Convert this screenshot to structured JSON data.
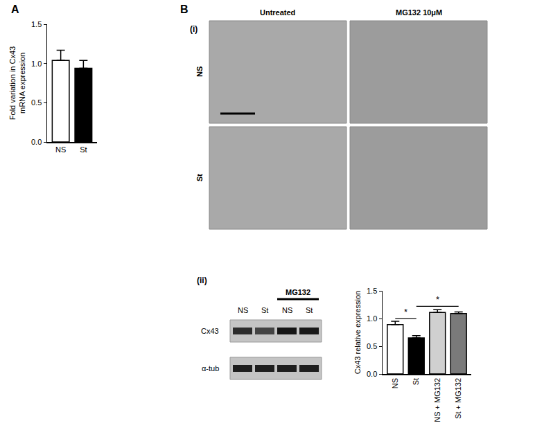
{
  "panels": [
    "A",
    "B",
    "(i)",
    "(ii)"
  ],
  "micrographs": {
    "columns": [
      "Untreated",
      "MG132 10μM"
    ],
    "rows": [
      "NS",
      "St"
    ]
  },
  "blot": {
    "treatment": "MG132",
    "lanes": [
      "NS",
      "St",
      "NS",
      "St"
    ],
    "proteins": [
      "Cx43",
      "α-tub"
    ]
  },
  "chart_data": [
    {
      "type": "bar",
      "categories": [
        "NS",
        "St"
      ],
      "values": [
        1.04,
        0.94
      ],
      "errors": [
        0.13,
        0.1
      ],
      "colors": [
        "#ffffff",
        "#000000"
      ],
      "y_label": "Fold variation in Cx43\nmRNA expression",
      "ylim": [
        0,
        1.5
      ],
      "yticks": [
        {
          "value": 0,
          "label": "0.0"
        },
        {
          "value": 0.5,
          "label": "0.5"
        },
        {
          "value": 1,
          "label": "1.0"
        },
        {
          "value": 1.5,
          "label": "1.5"
        }
      ]
    },
    {
      "type": "bar",
      "categories": [
        "NS",
        "St",
        "NS + MG132",
        "St + MG132"
      ],
      "values": [
        0.89,
        0.65,
        1.11,
        1.09
      ],
      "errors": [
        0.06,
        0.04,
        0.05,
        0.03
      ],
      "colors": [
        "#ffffff",
        "#000000",
        "#d0d0d0",
        "#7a7a7a"
      ],
      "y_label": "Cx43 relative expression",
      "ylim": [
        0,
        1.5
      ],
      "yticks": [
        {
          "value": 0,
          "label": "0.0"
        },
        {
          "value": 0.5,
          "label": "0.5"
        },
        {
          "value": 1,
          "label": "1.0"
        },
        {
          "value": 1.5,
          "label": "1.5"
        }
      ],
      "significance": [
        {
          "from": "NS",
          "to": "St",
          "label": "*",
          "y": 1.0
        },
        {
          "from": "St",
          "to": "St + MG132",
          "label": "*",
          "y": 1.22
        }
      ]
    }
  ]
}
